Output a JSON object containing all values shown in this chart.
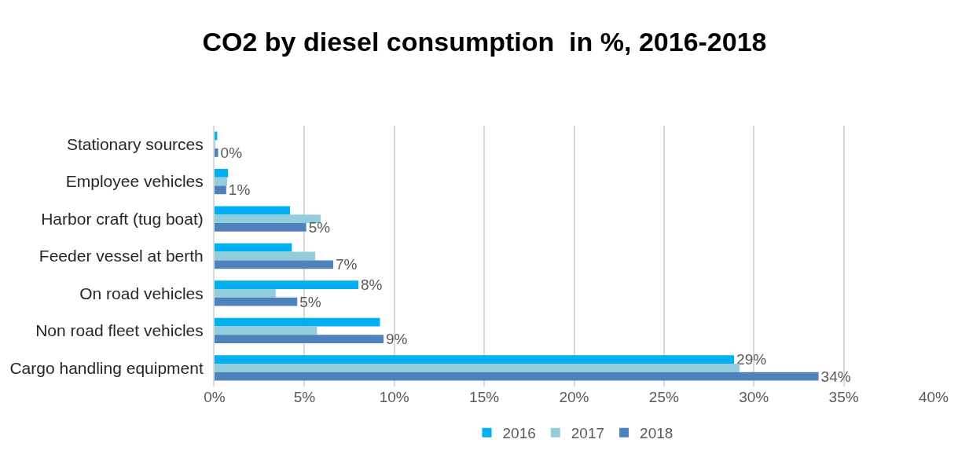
{
  "chart_data": {
    "type": "bar",
    "orientation": "horizontal",
    "title": "CO2 by diesel consumption  in %, 2016-2018",
    "categories": [
      "Stationary sources",
      "Employee vehicles",
      "Harbor craft (tug boat)",
      "Feeder vessel at berth",
      "On road vehicles",
      "Non road fleet vehicles",
      "Cargo handling equipment"
    ],
    "series": [
      {
        "name": "2016",
        "color": "#00b0f0",
        "values": [
          0.15,
          0.75,
          4.2,
          4.3,
          8.0,
          9.2,
          28.9
        ],
        "value_labels": [
          null,
          null,
          null,
          null,
          "8%",
          null,
          "29%"
        ]
      },
      {
        "name": "2017",
        "color": "#92cddc",
        "values": [
          0.05,
          0.7,
          5.9,
          5.6,
          3.4,
          5.7,
          29.2
        ],
        "value_labels": [
          null,
          null,
          null,
          null,
          null,
          null,
          null
        ]
      },
      {
        "name": "2018",
        "color": "#4f81bd",
        "values": [
          0.2,
          0.65,
          5.1,
          6.6,
          4.6,
          9.4,
          33.6
        ],
        "value_labels": [
          "0%",
          "1%",
          "5%",
          "7%",
          "5%",
          "9%",
          "34%"
        ]
      }
    ],
    "xlim": [
      0,
      40
    ],
    "xticks": [
      {
        "value": 0,
        "label": "0%"
      },
      {
        "value": 5,
        "label": "5%"
      },
      {
        "value": 10,
        "label": "10%"
      },
      {
        "value": 15,
        "label": "15%"
      },
      {
        "value": 20,
        "label": "20%"
      },
      {
        "value": 25,
        "label": "25%"
      },
      {
        "value": 30,
        "label": "30%"
      },
      {
        "value": 35,
        "label": "35%"
      },
      {
        "value": 40,
        "label": "40%"
      }
    ],
    "grid": "x",
    "legend": "bottom"
  }
}
